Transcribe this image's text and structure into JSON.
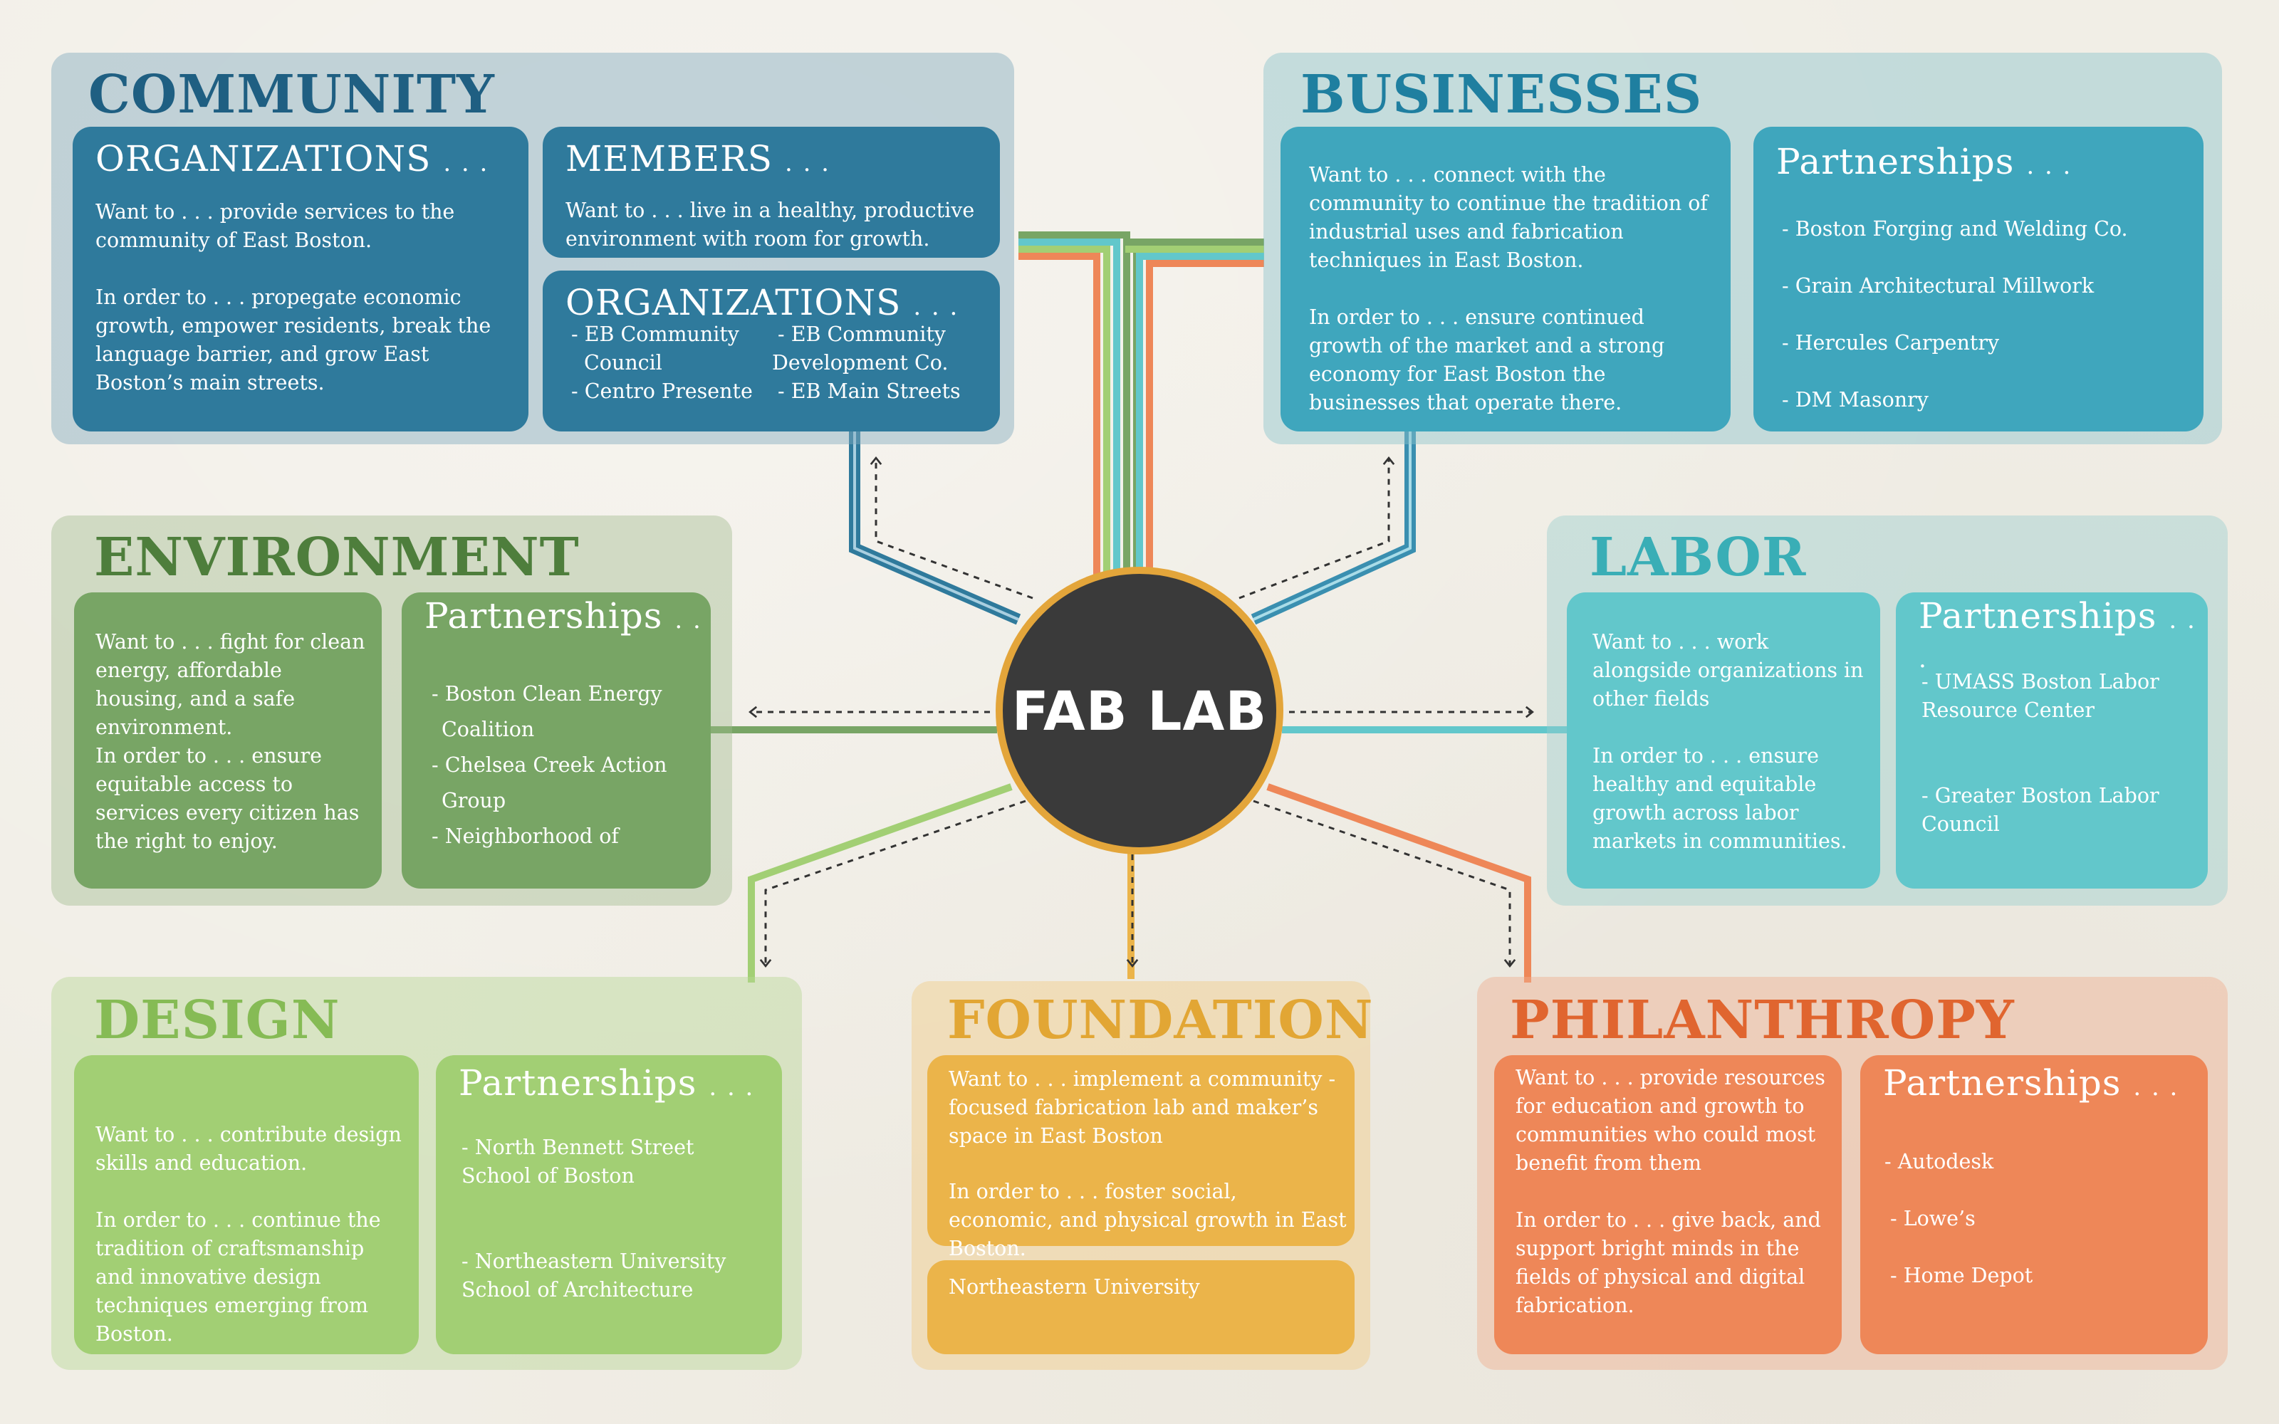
{
  "colors": {
    "background": "#f1eee6",
    "community": "#2f7a9c",
    "businesses": "#3fa6bd",
    "environment": "#78a565",
    "labor": "#62c7cb",
    "design": "#a2cf74",
    "foundation": "#ebb44a",
    "philanthropy": "#ee8758",
    "hub": "#3a3a3a",
    "hub_ring": "#e3a53a"
  },
  "hub": {
    "label": "FAB LAB"
  },
  "community": {
    "title": "COMMUNITY",
    "organizations": {
      "head": "ORGANIZATIONS",
      "dots": ". . .",
      "want": "Want to . . . provide services to the community of East Boston.",
      "order": "In order to . . . propegate economic growth, empower residents, break the language barrier, and grow East Boston’s main streets."
    },
    "members": {
      "head": "MEMBERS",
      "dots": ". . .",
      "want": "Want to . . . live in a healthy, productive environment with room for growth."
    },
    "org_list": {
      "head": "ORGANIZATIONS",
      "dots": ". . .",
      "col1": [
        "- EB Community",
        "Council",
        "- Centro Presente"
      ],
      "col2": [
        "- EB Community",
        "Development Co.",
        "- EB Main Streets"
      ]
    }
  },
  "businesses": {
    "title": "BUSINESSES",
    "want": "Want to . . . connect with the community to continue the tradition of industrial uses and fabrication techniques in East Boston.",
    "order": "In order to . . . ensure continued growth of the market and a strong economy for East Boston the businesses that operate there.",
    "partnerships_head": "Partnerships",
    "partnerships_dots": ". . .",
    "partners": [
      "- Boston Forging and Welding Co.",
      "- Grain Architectural Millwork",
      "- Hercules Carpentry",
      "- DM Masonry"
    ]
  },
  "environment": {
    "title": "ENVIRONMENT",
    "want": "Want to . . . fight for clean energy, affordable housing, and a safe environment.",
    "order": "In order to . . . ensure equitable access to services every citizen has the right to enjoy.",
    "partnerships_head": "Partnerships",
    "partnerships_dots": ". .",
    "partners": [
      "- Boston Clean Energy",
      "Coalition",
      "- Chelsea Creek Action",
      "Group",
      "- Neighborhood of"
    ]
  },
  "labor": {
    "title": "LABOR",
    "want": "Want to . . . work alongside organizations in other fields",
    "order": "In order to . . . ensure healthy and equitable growth across labor markets in communities.",
    "partnerships_head": "Partnerships",
    "partnerships_dots": ". . .",
    "partner_1": "- UMASS Boston Labor Resource Center",
    "partner_2": "- Greater Boston Labor Council"
  },
  "design": {
    "title": "DESIGN",
    "want": "Want to . . . contribute design skills and education.",
    "order": "In order to . . . continue the tradition of craftsmanship and innovative design techniques emerging from Boston.",
    "partnerships_head": "Partnerships",
    "partnerships_dots": ". . .",
    "partner_1": "- North Bennett Street School of Boston",
    "partner_2": "- Northeastern University School of Architecture"
  },
  "foundation": {
    "title": "FOUNDATION",
    "want": "Want to . . . implement a community - focused fabrication lab and maker’s space in East Boston",
    "order": "In order to . . . foster social, economic, and physical growth in East Boston.",
    "partner": "Northeastern University"
  },
  "philanthropy": {
    "title": "PHILANTHROPY",
    "want": "Want to . . . provide resources for education and growth to communities who could most benefit from them",
    "order": "In order to . . . give back, and support bright minds in the fields of physical and digital fabrication.",
    "partnerships_head": "Partnerships",
    "partnerships_dots": ". . .",
    "partners": [
      "- Autodesk",
      "- Lowe’s",
      "- Home Depot"
    ]
  }
}
